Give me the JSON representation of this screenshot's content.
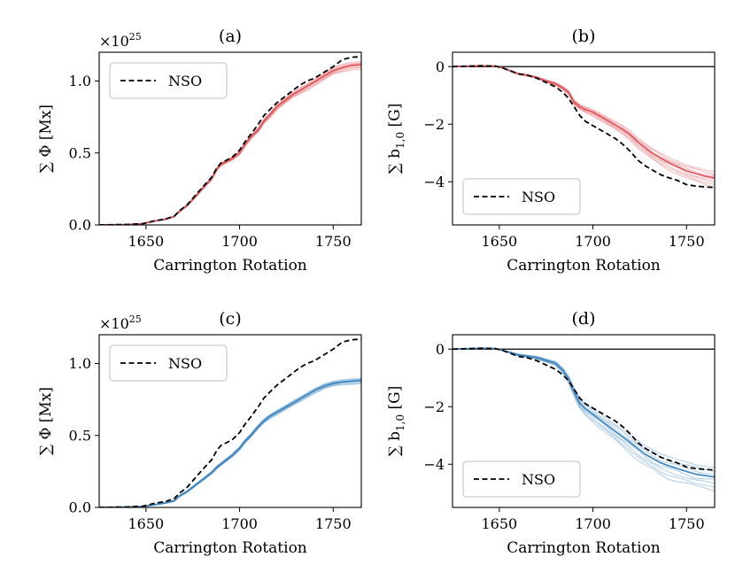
{
  "figure": {
    "colors": {
      "red": "#e0525a",
      "blue": "#3a85c0",
      "nso": "#000000",
      "zero_line": "#000000"
    }
  },
  "chart_data": [
    {
      "id": "a",
      "type": "line",
      "title": "(a)",
      "xlabel": "Carrington Rotation",
      "ylabel": "∑ Φ [Mx]",
      "offset_text": "×10",
      "offset_exp": "25",
      "xlim": [
        1625,
        1765
      ],
      "ylim": [
        0,
        1.2
      ],
      "xticks": [
        1650,
        1700,
        1750
      ],
      "xtick_labels": [
        "1650",
        "1700",
        "1750"
      ],
      "yticks": [
        0,
        0.5,
        1.0
      ],
      "ytick_labels": [
        "0.0",
        "0.5",
        "1.0"
      ],
      "legend": {
        "location": "upper-left",
        "entries": [
          "NSO"
        ]
      },
      "zero_line": false,
      "ensemble_color": "red",
      "nso": {
        "name": "NSO",
        "x": [
          1625,
          1640,
          1648,
          1655,
          1660,
          1665,
          1668,
          1672,
          1676,
          1680,
          1685,
          1688,
          1690,
          1693,
          1696,
          1700,
          1703,
          1706,
          1710,
          1713,
          1716,
          1720,
          1724,
          1728,
          1732,
          1736,
          1740,
          1745,
          1750,
          1755,
          1760,
          1765
        ],
        "y": [
          0,
          0.003,
          0.008,
          0.03,
          0.04,
          0.06,
          0.1,
          0.14,
          0.2,
          0.26,
          0.33,
          0.4,
          0.43,
          0.45,
          0.47,
          0.52,
          0.58,
          0.63,
          0.7,
          0.76,
          0.8,
          0.85,
          0.89,
          0.93,
          0.97,
          1.0,
          1.02,
          1.06,
          1.1,
          1.15,
          1.165,
          1.17
        ]
      },
      "ensemble": {
        "x": [
          1625,
          1640,
          1648,
          1655,
          1660,
          1665,
          1668,
          1672,
          1676,
          1680,
          1685,
          1688,
          1690,
          1693,
          1696,
          1700,
          1703,
          1706,
          1710,
          1713,
          1716,
          1720,
          1724,
          1728,
          1732,
          1736,
          1740,
          1745,
          1750,
          1755,
          1760,
          1765
        ],
        "mean": [
          0,
          0.003,
          0.008,
          0.028,
          0.038,
          0.058,
          0.095,
          0.135,
          0.19,
          0.25,
          0.32,
          0.39,
          0.42,
          0.44,
          0.46,
          0.5,
          0.56,
          0.61,
          0.66,
          0.72,
          0.76,
          0.82,
          0.86,
          0.9,
          0.93,
          0.96,
          0.99,
          1.03,
          1.07,
          1.09,
          1.105,
          1.11
        ],
        "spread": [
          0,
          0,
          0.001,
          0.002,
          0.003,
          0.004,
          0.005,
          0.006,
          0.007,
          0.008,
          0.009,
          0.01,
          0.01,
          0.011,
          0.011,
          0.012,
          0.013,
          0.014,
          0.015,
          0.016,
          0.017,
          0.018,
          0.019,
          0.02,
          0.021,
          0.022,
          0.022,
          0.023,
          0.024,
          0.025,
          0.025,
          0.025
        ],
        "members": 8
      }
    },
    {
      "id": "b",
      "type": "line",
      "title": "(b)",
      "xlabel": "Carrington Rotation",
      "ylabel": "∑ b",
      "ylabel_sub": "1,0",
      "ylabel_unit": " [G]",
      "xlim": [
        1625,
        1765
      ],
      "ylim": [
        -5.5,
        0.5
      ],
      "xticks": [
        1650,
        1700,
        1750
      ],
      "xtick_labels": [
        "1650",
        "1700",
        "1750"
      ],
      "yticks": [
        -4,
        -2,
        0
      ],
      "ytick_labels": [
        "−4",
        "−2",
        "0"
      ],
      "legend": {
        "location": "lower-left",
        "entries": [
          "NSO"
        ]
      },
      "zero_line": true,
      "ensemble_color": "red",
      "nso": {
        "name": "NSO",
        "x": [
          1625,
          1640,
          1648,
          1652,
          1656,
          1660,
          1665,
          1670,
          1675,
          1680,
          1684,
          1687,
          1690,
          1693,
          1696,
          1700,
          1704,
          1708,
          1712,
          1716,
          1720,
          1724,
          1728,
          1732,
          1736,
          1740,
          1745,
          1750,
          1755,
          1760,
          1765
        ],
        "y": [
          0,
          0.03,
          0.02,
          -0.05,
          -0.15,
          -0.25,
          -0.3,
          -0.4,
          -0.55,
          -0.7,
          -0.9,
          -1.1,
          -1.4,
          -1.7,
          -1.9,
          -2.05,
          -2.2,
          -2.35,
          -2.5,
          -2.7,
          -2.95,
          -3.25,
          -3.45,
          -3.6,
          -3.75,
          -3.85,
          -3.95,
          -4.1,
          -4.15,
          -4.18,
          -4.2
        ]
      },
      "ensemble": {
        "x": [
          1625,
          1640,
          1648,
          1652,
          1656,
          1660,
          1665,
          1670,
          1675,
          1680,
          1684,
          1687,
          1690,
          1693,
          1696,
          1700,
          1704,
          1708,
          1712,
          1716,
          1720,
          1724,
          1728,
          1732,
          1736,
          1740,
          1745,
          1750,
          1755,
          1760,
          1765
        ],
        "mean": [
          0,
          0.03,
          0.02,
          -0.05,
          -0.15,
          -0.25,
          -0.3,
          -0.38,
          -0.5,
          -0.6,
          -0.75,
          -0.9,
          -1.25,
          -1.4,
          -1.5,
          -1.6,
          -1.75,
          -1.9,
          -2.05,
          -2.2,
          -2.4,
          -2.65,
          -2.85,
          -3.05,
          -3.2,
          -3.35,
          -3.5,
          -3.65,
          -3.75,
          -3.85,
          -3.9
        ],
        "spread": [
          0,
          0,
          0,
          0.01,
          0.02,
          0.02,
          0.03,
          0.03,
          0.04,
          0.05,
          0.06,
          0.07,
          0.08,
          0.09,
          0.1,
          0.11,
          0.12,
          0.13,
          0.14,
          0.15,
          0.16,
          0.17,
          0.18,
          0.19,
          0.2,
          0.21,
          0.22,
          0.23,
          0.24,
          0.25,
          0.25
        ],
        "members": 8
      }
    },
    {
      "id": "c",
      "type": "line",
      "title": "(c)",
      "xlabel": "Carrington Rotation",
      "ylabel": "∑ Φ [Mx]",
      "offset_text": "×10",
      "offset_exp": "25",
      "xlim": [
        1625,
        1765
      ],
      "ylim": [
        0,
        1.2
      ],
      "xticks": [
        1650,
        1700,
        1750
      ],
      "xtick_labels": [
        "1650",
        "1700",
        "1750"
      ],
      "yticks": [
        0,
        0.5,
        1.0
      ],
      "ytick_labels": [
        "0.0",
        "0.5",
        "1.0"
      ],
      "legend": {
        "location": "upper-left",
        "entries": [
          "NSO"
        ]
      },
      "zero_line": false,
      "ensemble_color": "blue",
      "nso": {
        "name": "NSO",
        "x": [
          1625,
          1640,
          1648,
          1655,
          1660,
          1665,
          1668,
          1672,
          1676,
          1680,
          1685,
          1688,
          1690,
          1693,
          1696,
          1700,
          1703,
          1706,
          1710,
          1713,
          1716,
          1720,
          1724,
          1728,
          1732,
          1736,
          1740,
          1745,
          1750,
          1755,
          1760,
          1765
        ],
        "y": [
          0,
          0.003,
          0.008,
          0.03,
          0.04,
          0.06,
          0.1,
          0.14,
          0.2,
          0.26,
          0.33,
          0.4,
          0.43,
          0.45,
          0.47,
          0.52,
          0.58,
          0.63,
          0.7,
          0.76,
          0.8,
          0.85,
          0.89,
          0.93,
          0.97,
          1.0,
          1.02,
          1.06,
          1.1,
          1.15,
          1.165,
          1.17
        ]
      },
      "ensemble": {
        "x": [
          1625,
          1640,
          1648,
          1655,
          1660,
          1665,
          1668,
          1672,
          1676,
          1680,
          1685,
          1688,
          1690,
          1693,
          1696,
          1700,
          1703,
          1706,
          1710,
          1713,
          1716,
          1720,
          1724,
          1728,
          1732,
          1736,
          1740,
          1745,
          1750,
          1755,
          1760,
          1765
        ],
        "mean": [
          0,
          0.003,
          0.006,
          0.02,
          0.03,
          0.045,
          0.08,
          0.11,
          0.15,
          0.19,
          0.24,
          0.28,
          0.3,
          0.33,
          0.36,
          0.41,
          0.46,
          0.5,
          0.56,
          0.6,
          0.63,
          0.66,
          0.69,
          0.72,
          0.75,
          0.78,
          0.81,
          0.84,
          0.86,
          0.87,
          0.875,
          0.88
        ],
        "spread": [
          0,
          0,
          0.001,
          0.002,
          0.003,
          0.004,
          0.005,
          0.006,
          0.007,
          0.008,
          0.009,
          0.01,
          0.01,
          0.011,
          0.011,
          0.012,
          0.012,
          0.013,
          0.013,
          0.014,
          0.014,
          0.015,
          0.015,
          0.016,
          0.016,
          0.016,
          0.017,
          0.017,
          0.017,
          0.018,
          0.018,
          0.018
        ],
        "members": 8
      }
    },
    {
      "id": "d",
      "type": "line",
      "title": "(d)",
      "xlabel": "Carrington Rotation",
      "ylabel": "∑ b",
      "ylabel_sub": "1,0",
      "ylabel_unit": " [G]",
      "xlim": [
        1625,
        1765
      ],
      "ylim": [
        -5.5,
        0.5
      ],
      "xticks": [
        1650,
        1700,
        1750
      ],
      "xtick_labels": [
        "1650",
        "1700",
        "1750"
      ],
      "yticks": [
        -4,
        -2,
        0
      ],
      "ytick_labels": [
        "−4",
        "−2",
        "0"
      ],
      "legend": {
        "location": "lower-left",
        "entries": [
          "NSO"
        ]
      },
      "zero_line": true,
      "ensemble_color": "blue",
      "nso": {
        "name": "NSO",
        "x": [
          1625,
          1640,
          1648,
          1652,
          1656,
          1660,
          1665,
          1670,
          1675,
          1680,
          1684,
          1687,
          1690,
          1693,
          1696,
          1700,
          1704,
          1708,
          1712,
          1716,
          1720,
          1724,
          1728,
          1732,
          1736,
          1740,
          1745,
          1750,
          1755,
          1760,
          1765
        ],
        "y": [
          0,
          0.03,
          0.02,
          -0.05,
          -0.15,
          -0.25,
          -0.3,
          -0.4,
          -0.55,
          -0.7,
          -0.9,
          -1.1,
          -1.4,
          -1.7,
          -1.9,
          -2.05,
          -2.2,
          -2.35,
          -2.5,
          -2.7,
          -2.95,
          -3.25,
          -3.45,
          -3.6,
          -3.75,
          -3.85,
          -3.95,
          -4.1,
          -4.15,
          -4.18,
          -4.2
        ]
      },
      "ensemble": {
        "x": [
          1625,
          1640,
          1648,
          1652,
          1656,
          1660,
          1665,
          1670,
          1675,
          1680,
          1684,
          1687,
          1690,
          1693,
          1696,
          1700,
          1704,
          1708,
          1712,
          1716,
          1720,
          1724,
          1728,
          1732,
          1736,
          1740,
          1745,
          1750,
          1755,
          1760,
          1765
        ],
        "mean": [
          0,
          0.03,
          0.02,
          -0.05,
          -0.12,
          -0.2,
          -0.25,
          -0.3,
          -0.4,
          -0.5,
          -0.75,
          -1.05,
          -1.5,
          -1.9,
          -2.1,
          -2.3,
          -2.5,
          -2.7,
          -2.9,
          -3.1,
          -3.3,
          -3.5,
          -3.7,
          -3.85,
          -4.0,
          -4.1,
          -4.2,
          -4.3,
          -4.4,
          -4.45,
          -4.5
        ],
        "spread": [
          0,
          0,
          0,
          0.01,
          0.02,
          0.03,
          0.04,
          0.05,
          0.06,
          0.07,
          0.09,
          0.12,
          0.15,
          0.18,
          0.2,
          0.22,
          0.24,
          0.26,
          0.28,
          0.3,
          0.32,
          0.33,
          0.34,
          0.35,
          0.36,
          0.37,
          0.37,
          0.38,
          0.38,
          0.38,
          0.38
        ],
        "members": 8
      }
    }
  ]
}
